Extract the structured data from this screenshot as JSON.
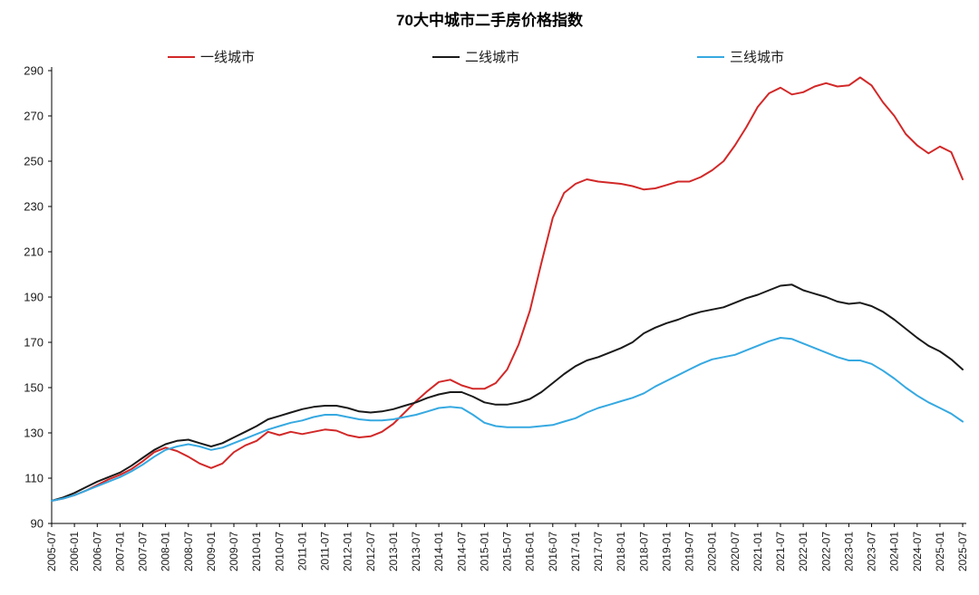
{
  "page": {
    "background": "#ffffff"
  },
  "chart_data": {
    "type": "line",
    "title": "70大中城市二手房价格指数",
    "xlabel": "",
    "ylabel": "",
    "grid": false,
    "legend_position": "top",
    "ylim": [
      90,
      290
    ],
    "y_ticks": [
      90,
      110,
      130,
      150,
      170,
      190,
      210,
      230,
      250,
      270,
      290
    ],
    "x_frequency": "quarterly",
    "x_start": "2005-07",
    "x_end": "2025-07",
    "points_per_label": 2,
    "x_labels": [
      "2005-07",
      "2006-01",
      "2006-07",
      "2007-01",
      "2007-07",
      "2008-01",
      "2008-07",
      "2009-01",
      "2009-07",
      "2010-01",
      "2010-07",
      "2011-01",
      "2011-07",
      "2012-01",
      "2012-07",
      "2013-01",
      "2013-07",
      "2014-01",
      "2014-07",
      "2015-01",
      "2015-07",
      "2016-01",
      "2016-07",
      "2017-01",
      "2017-07",
      "2018-01",
      "2018-07",
      "2019-01",
      "2019-07",
      "2020-01",
      "2020-07",
      "2021-01",
      "2021-07",
      "2022-01",
      "2022-07",
      "2023-01",
      "2023-07",
      "2024-01",
      "2024-07",
      "2025-01",
      "2025-07"
    ],
    "series": [
      {
        "name": "一线城市",
        "color": "#d22828",
        "values": [
          100,
          101,
          102.5,
          104.5,
          107,
          109.5,
          111.5,
          114,
          117.5,
          121.5,
          123.5,
          122,
          119.5,
          116.5,
          114.5,
          116.5,
          121.5,
          124.5,
          126.5,
          130.5,
          129,
          130.5,
          129.5,
          130.5,
          131.5,
          131,
          129,
          128,
          128.5,
          130.5,
          134,
          139,
          144,
          148.5,
          152.5,
          153.5,
          151,
          149.5,
          149.5,
          152,
          158,
          169,
          184,
          205,
          225,
          236,
          240,
          242,
          241,
          240.5,
          240,
          239,
          237.5,
          238,
          239.5,
          241,
          241,
          243,
          246,
          250,
          257,
          265,
          274,
          280,
          282.5,
          279.5,
          280.5,
          283,
          284.5,
          283,
          283.5,
          287,
          283.5,
          276,
          270,
          262,
          257,
          253.5,
          256.5,
          254,
          242
        ]
      },
      {
        "name": "二线城市",
        "color": "#1a1a1a",
        "values": [
          100,
          101.5,
          103.5,
          106,
          108.5,
          110.5,
          112.5,
          115.5,
          119,
          122.5,
          125,
          126.5,
          127,
          125.5,
          124,
          125.5,
          128,
          130.5,
          133,
          136,
          137.5,
          139,
          140.5,
          141.5,
          142,
          142,
          141,
          139.5,
          139,
          139.5,
          140.5,
          142,
          143.5,
          145.5,
          147,
          148,
          148,
          146,
          143.5,
          142.5,
          142.5,
          143.5,
          145,
          148,
          152,
          156,
          159.5,
          162,
          163.5,
          165.5,
          167.5,
          170,
          174,
          176.5,
          178.5,
          180,
          182,
          183.5,
          184.5,
          185.5,
          187.5,
          189.5,
          191,
          193,
          195,
          195.5,
          193,
          191.5,
          190,
          188,
          187,
          187.5,
          186,
          183.5,
          180,
          176,
          172,
          168.5,
          166,
          162.5,
          158
        ]
      },
      {
        "name": "三线城市",
        "color": "#36a9e1",
        "values": [
          100,
          101,
          102.5,
          104.5,
          106.5,
          108.5,
          110.5,
          113,
          116,
          119.5,
          122.5,
          124,
          125,
          124,
          122.5,
          123.5,
          125.5,
          127.5,
          129.5,
          131.5,
          133,
          134.5,
          135.5,
          137,
          138,
          138,
          137,
          136,
          135.5,
          135.5,
          136,
          137,
          138,
          139.5,
          141,
          141.5,
          141,
          138,
          134.5,
          133,
          132.5,
          132.5,
          132.5,
          133,
          133.5,
          135,
          136.5,
          139,
          141,
          142.5,
          144,
          145.5,
          147.5,
          150.5,
          153,
          155.5,
          158,
          160.5,
          162.5,
          163.5,
          164.5,
          166.5,
          168.5,
          170.5,
          172,
          171.5,
          169.5,
          167.5,
          165.5,
          163.5,
          162,
          162,
          160.5,
          157.5,
          154,
          150,
          146.5,
          143.5,
          141,
          138.5,
          135
        ]
      }
    ]
  }
}
